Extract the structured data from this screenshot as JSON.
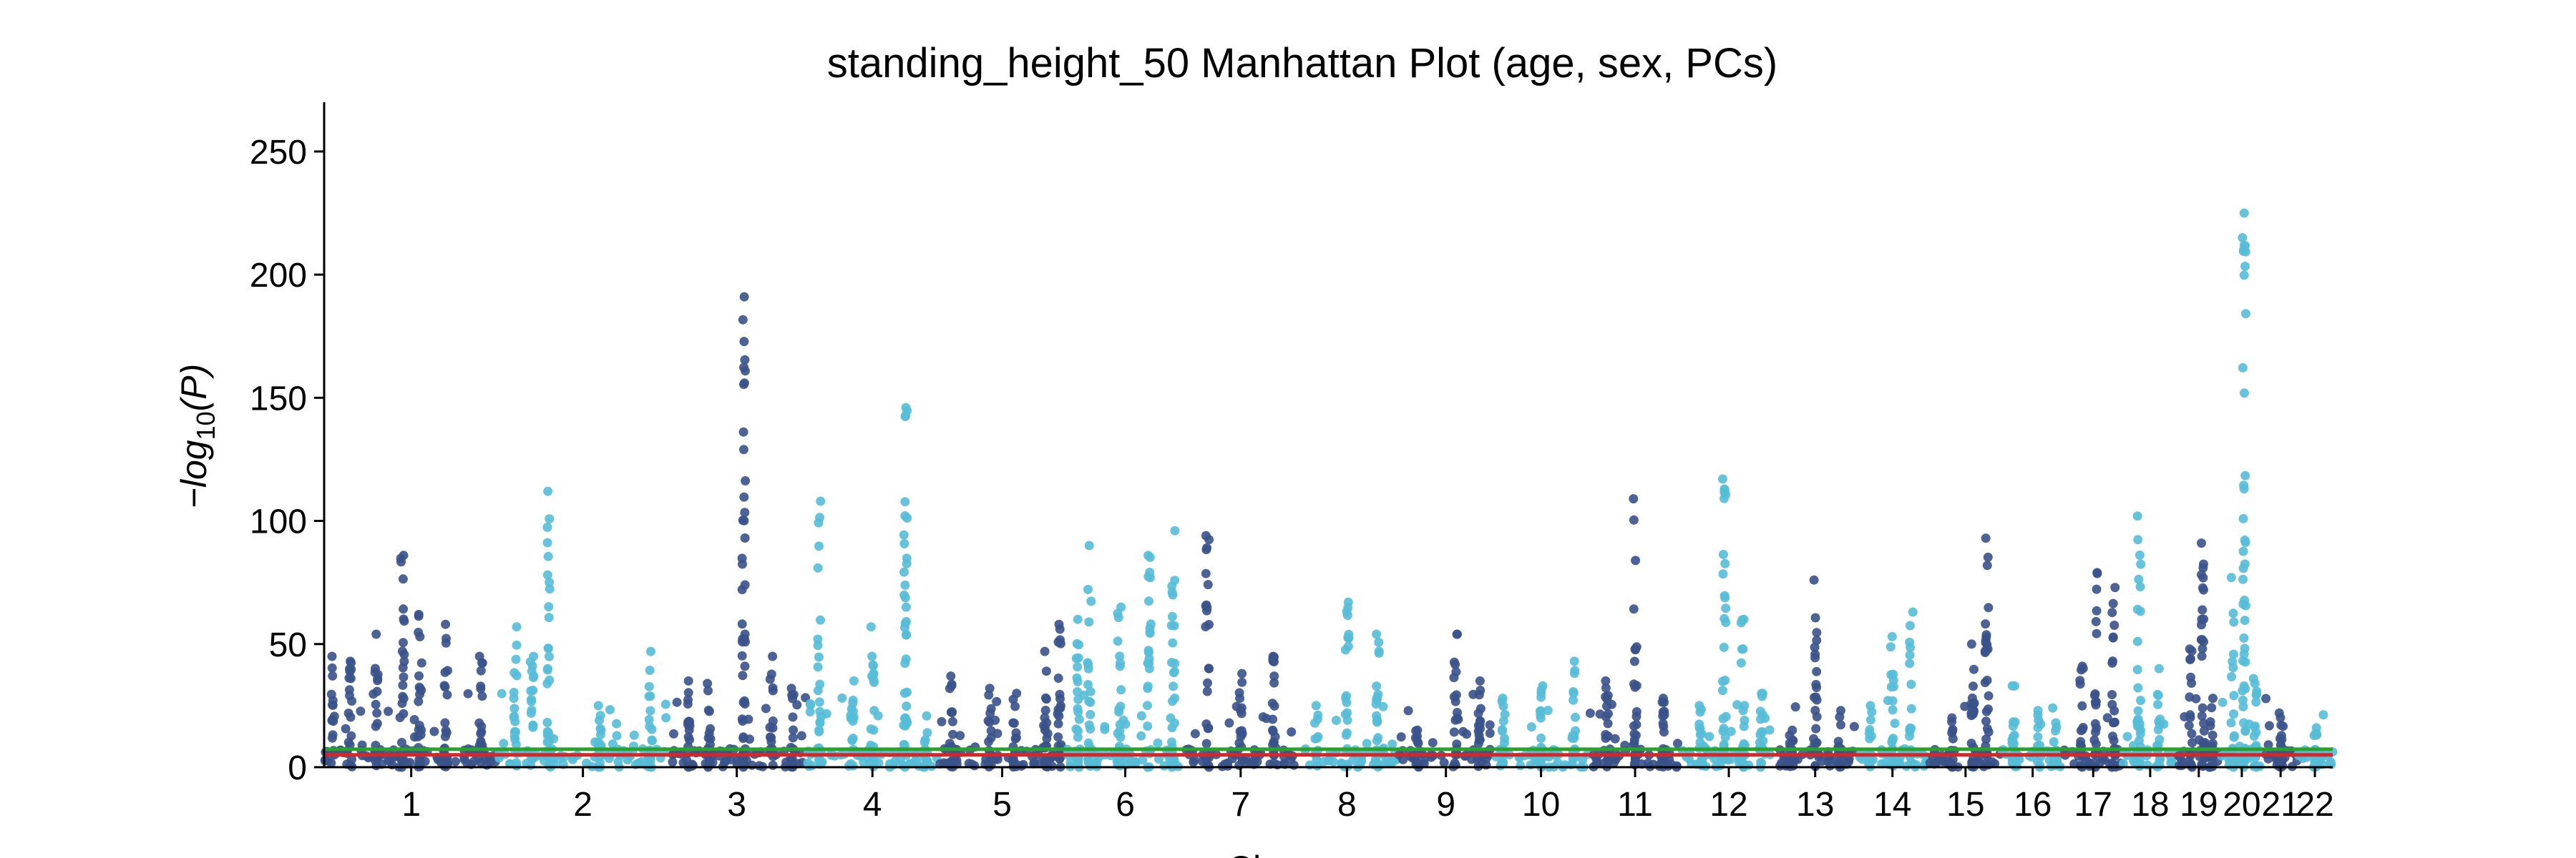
{
  "chart_data": {
    "type": "scatter",
    "title": "standing_height_50 Manhattan Plot (age, sex, PCs)",
    "xlabel": "Chromosome",
    "ylabel_main": "−log",
    "ylabel_sub": "10",
    "ylabel_arg": "(P)",
    "ylim": [
      0,
      270
    ],
    "yticks": [
      0,
      50,
      100,
      150,
      200,
      250
    ],
    "grid": false,
    "colors": {
      "odd_chromosome": "#3a5289",
      "even_chromosome": "#56bcd7"
    },
    "threshold_lines": [
      {
        "value": 5,
        "color": "#d62728"
      },
      {
        "value": 7.3,
        "color": "#2ca02c"
      }
    ],
    "chromosomes": [
      {
        "label": "1",
        "peaks": [
          [
            0.05,
            45
          ],
          [
            0.15,
            43
          ],
          [
            0.3,
            54
          ],
          [
            0.45,
            86
          ],
          [
            0.55,
            62
          ],
          [
            0.7,
            58
          ],
          [
            0.9,
            45
          ]
        ]
      },
      {
        "label": "2",
        "peaks": [
          [
            0.1,
            57
          ],
          [
            0.2,
            45
          ],
          [
            0.3,
            112
          ],
          [
            0.6,
            25
          ],
          [
            0.9,
            47
          ]
        ]
      },
      {
        "label": "3",
        "peaks": [
          [
            0.15,
            35
          ],
          [
            0.3,
            34
          ],
          [
            0.55,
            191
          ],
          [
            0.75,
            45
          ],
          [
            0.9,
            32
          ]
        ]
      },
      {
        "label": "4",
        "peaks": [
          [
            0.1,
            108
          ],
          [
            0.35,
            35
          ],
          [
            0.5,
            57
          ],
          [
            0.75,
            146
          ],
          [
            0.9,
            14
          ]
        ]
      },
      {
        "label": "5",
        "peaks": [
          [
            0.1,
            37
          ],
          [
            0.4,
            32
          ],
          [
            0.6,
            30
          ],
          [
            0.85,
            47
          ],
          [
            0.95,
            58
          ]
        ]
      },
      {
        "label": "6",
        "peaks": [
          [
            0.1,
            60
          ],
          [
            0.2,
            90
          ],
          [
            0.45,
            65
          ],
          [
            0.7,
            86
          ],
          [
            0.9,
            96
          ]
        ]
      },
      {
        "label": "7",
        "peaks": [
          [
            0.2,
            94
          ],
          [
            0.5,
            38
          ],
          [
            0.8,
            45
          ]
        ]
      },
      {
        "label": "8",
        "peaks": [
          [
            0.2,
            25
          ],
          [
            0.5,
            67
          ],
          [
            0.8,
            54
          ]
        ]
      },
      {
        "label": "9",
        "peaks": [
          [
            0.2,
            15
          ],
          [
            0.6,
            54
          ],
          [
            0.85,
            35
          ]
        ]
      },
      {
        "label": "10",
        "peaks": [
          [
            0.1,
            28
          ],
          [
            0.5,
            33
          ],
          [
            0.85,
            43
          ]
        ]
      },
      {
        "label": "11",
        "peaks": [
          [
            0.2,
            35
          ],
          [
            0.5,
            109
          ],
          [
            0.8,
            28
          ]
        ]
      },
      {
        "label": "12",
        "peaks": [
          [
            0.2,
            25
          ],
          [
            0.45,
            117
          ],
          [
            0.65,
            60
          ],
          [
            0.85,
            30
          ]
        ]
      },
      {
        "label": "13",
        "peaks": [
          [
            0.2,
            15
          ],
          [
            0.5,
            76
          ],
          [
            0.8,
            23
          ]
        ]
      },
      {
        "label": "14",
        "peaks": [
          [
            0.2,
            25
          ],
          [
            0.5,
            53
          ],
          [
            0.75,
            63
          ]
        ]
      },
      {
        "label": "15",
        "peaks": [
          [
            0.3,
            20
          ],
          [
            0.6,
            50
          ],
          [
            0.8,
            93
          ]
        ]
      },
      {
        "label": "16",
        "peaks": [
          [
            0.2,
            33
          ],
          [
            0.6,
            23
          ],
          [
            0.85,
            18
          ]
        ]
      },
      {
        "label": "17",
        "peaks": [
          [
            0.3,
            41
          ],
          [
            0.55,
            79
          ],
          [
            0.85,
            73
          ]
        ]
      },
      {
        "label": "18",
        "peaks": [
          [
            0.3,
            102
          ],
          [
            0.65,
            40
          ]
        ]
      },
      {
        "label": "19",
        "peaks": [
          [
            0.3,
            48
          ],
          [
            0.6,
            91
          ],
          [
            0.8,
            28
          ]
        ]
      },
      {
        "label": "20",
        "peaks": [
          [
            0.3,
            77
          ],
          [
            0.55,
            225
          ],
          [
            0.8,
            36
          ]
        ]
      },
      {
        "label": "21",
        "peaks": [
          [
            0.5,
            22
          ]
        ]
      },
      {
        "label": "22",
        "peaks": [
          [
            0.5,
            16
          ]
        ]
      }
    ]
  }
}
